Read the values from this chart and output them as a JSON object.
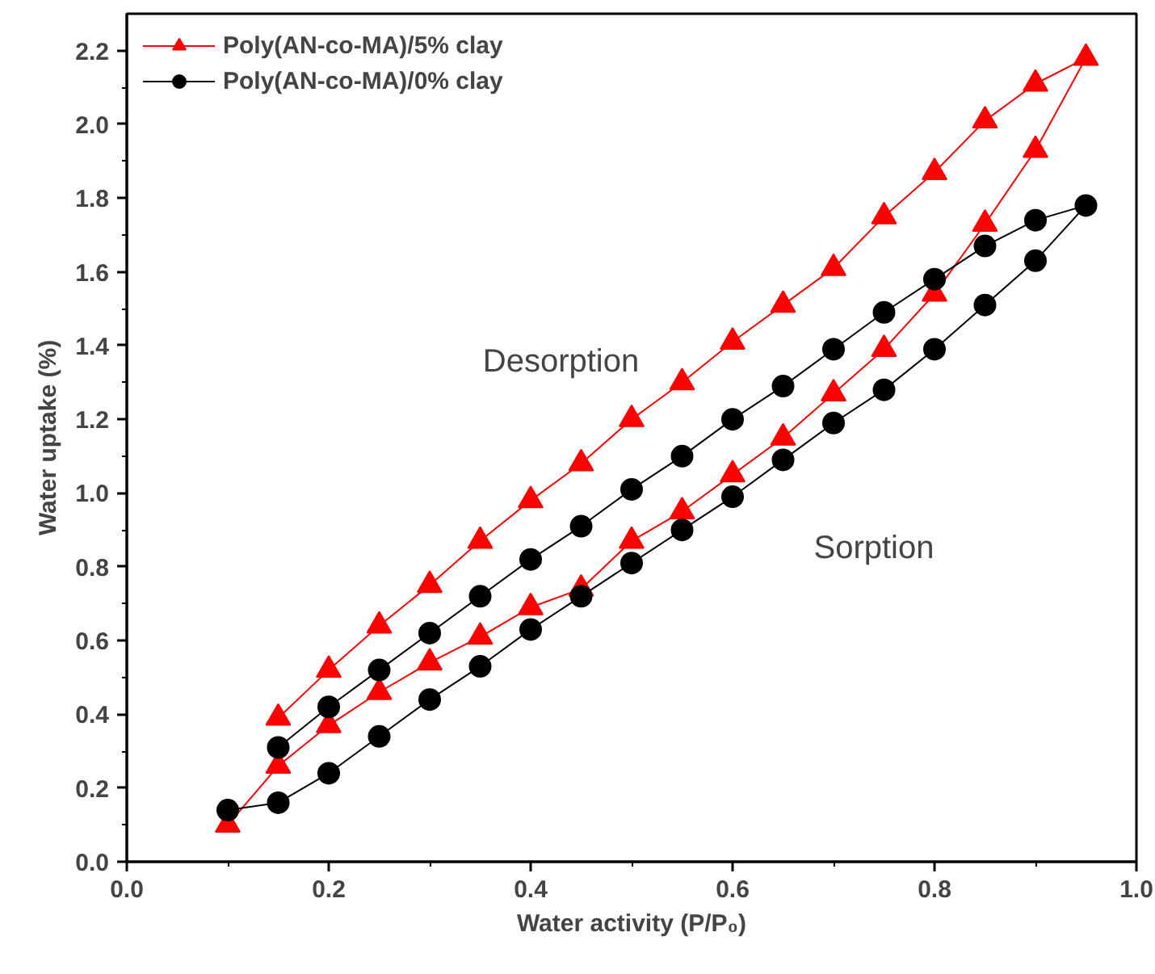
{
  "chart_data": {
    "type": "line",
    "xlabel": "Water activity (P/P₀)",
    "ylabel": "Water uptake (%)",
    "series": [
      {
        "name": "Poly(AN-co-MA)/5% clay",
        "color": "#ff0000",
        "marker": "triangle",
        "x": [
          0.1,
          0.15,
          0.2,
          0.25,
          0.3,
          0.35,
          0.4,
          0.45,
          0.5,
          0.55,
          0.6,
          0.65,
          0.7,
          0.75,
          0.8,
          0.85,
          0.9,
          0.95,
          0.9,
          0.85,
          0.8,
          0.75,
          0.7,
          0.65,
          0.6,
          0.55,
          0.5,
          0.45,
          0.4,
          0.35,
          0.3,
          0.25,
          0.2,
          0.15
        ],
        "values": [
          0.1,
          0.26,
          0.37,
          0.46,
          0.54,
          0.61,
          0.69,
          0.74,
          0.87,
          0.95,
          1.05,
          1.15,
          1.27,
          1.39,
          1.54,
          1.73,
          1.93,
          2.18,
          2.11,
          2.01,
          1.87,
          1.75,
          1.61,
          1.51,
          1.41,
          1.3,
          1.2,
          1.08,
          0.98,
          0.87,
          0.75,
          0.64,
          0.52,
          0.39
        ]
      },
      {
        "name": "Poly(AN-co-MA)/0% clay",
        "color": "#000000",
        "marker": "circle",
        "x": [
          0.1,
          0.15,
          0.2,
          0.25,
          0.3,
          0.35,
          0.4,
          0.45,
          0.5,
          0.55,
          0.6,
          0.65,
          0.7,
          0.75,
          0.8,
          0.85,
          0.9,
          0.95,
          0.9,
          0.85,
          0.8,
          0.75,
          0.7,
          0.65,
          0.6,
          0.55,
          0.5,
          0.45,
          0.4,
          0.35,
          0.3,
          0.25,
          0.2,
          0.15
        ],
        "values": [
          0.14,
          0.16,
          0.24,
          0.34,
          0.44,
          0.53,
          0.63,
          0.72,
          0.81,
          0.9,
          0.99,
          1.09,
          1.19,
          1.28,
          1.39,
          1.51,
          1.63,
          1.78,
          1.74,
          1.67,
          1.58,
          1.49,
          1.39,
          1.29,
          1.2,
          1.1,
          1.01,
          0.91,
          0.82,
          0.72,
          0.62,
          0.52,
          0.42,
          0.31
        ]
      }
    ],
    "annotations": [
      "Desorption",
      "Sorption"
    ],
    "xlim": [
      0.0,
      1.0
    ],
    "ylim": [
      0.0,
      2.3
    ],
    "xticks": [
      {
        "value": 0,
        "label": "0.0"
      },
      0.2,
      0.4,
      0.6,
      0.8,
      {
        "value": 1,
        "label": "1.0"
      }
    ],
    "yticks": [
      {
        "value": 0,
        "label": "0.0"
      },
      0.2,
      0.4,
      0.6,
      0.8,
      {
        "value": 1,
        "label": "1.0"
      },
      1.2,
      1.4,
      1.6,
      1.8,
      {
        "value": 2,
        "label": "2.0"
      },
      2.2
    ],
    "grid": false,
    "legend": "top left",
    "line_style": "solid"
  }
}
